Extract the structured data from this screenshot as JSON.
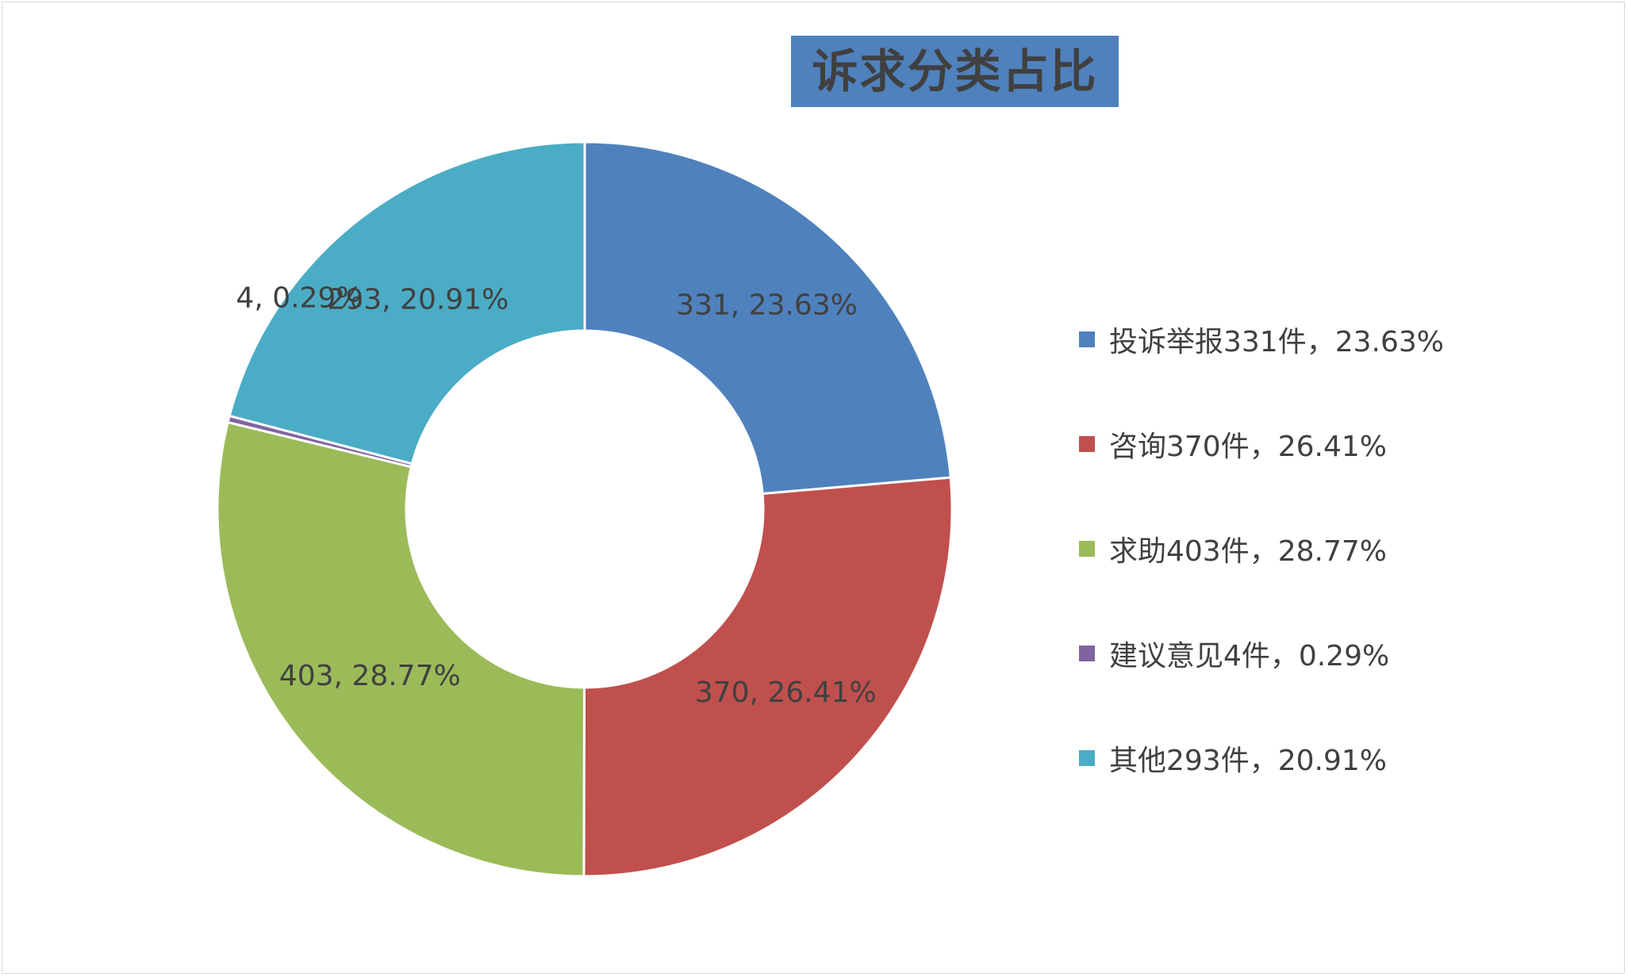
{
  "chart_data": {
    "type": "pie",
    "subtype": "donut",
    "title": "诉求分类占比",
    "slices": [
      {
        "label": "投诉举报",
        "value": 331,
        "percent": "23.63%",
        "color": "#4f81bd",
        "data_label": "331, 23.63%",
        "legend": "投诉举报331件，23.63%"
      },
      {
        "label": "咨询",
        "value": 370,
        "percent": "26.41%",
        "color": "#c0504d",
        "data_label": "370, 26.41%",
        "legend": "咨询370件，26.41%"
      },
      {
        "label": "求助",
        "value": 403,
        "percent": "28.77%",
        "color": "#9bbb59",
        "data_label": "403, 28.77%",
        "legend": "求助403件，28.77%"
      },
      {
        "label": "建议意见",
        "value": 4,
        "percent": "0.29%",
        "color": "#8064a2",
        "data_label": "4, 0.29%",
        "legend": "建议意见4件，0.29%"
      },
      {
        "label": "其他",
        "value": 293,
        "percent": "20.91%",
        "color": "#4bacc6",
        "data_label": "293, 20.91%",
        "legend": "其他293件，20.91%"
      }
    ],
    "legend_position": "right",
    "title_background": "#4f81bd"
  }
}
